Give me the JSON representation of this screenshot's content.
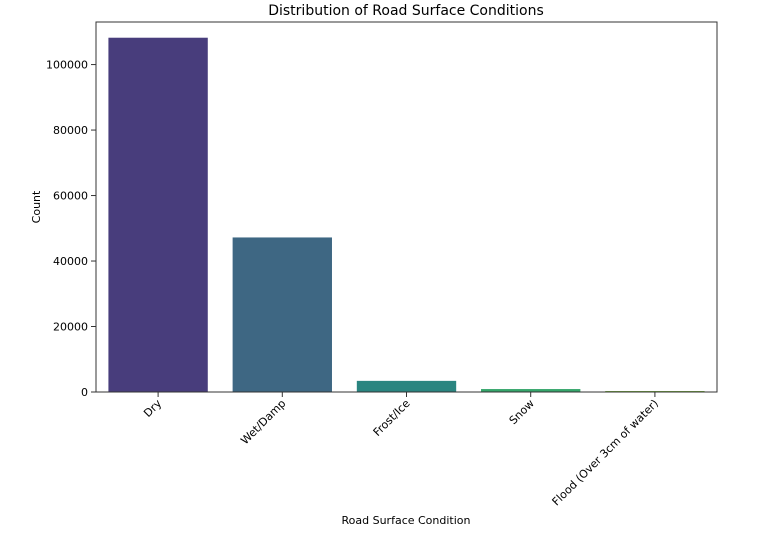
{
  "chart_data": {
    "type": "bar",
    "title": "Distribution of Road Surface Conditions",
    "xlabel": "Road Surface Condition",
    "ylabel": "Count",
    "categories": [
      "Dry",
      "Wet/Damp",
      "Frost/Ice",
      "Snow",
      "Flood (Over 3cm of water)"
    ],
    "values": [
      108200,
      47200,
      3400,
      900,
      300
    ],
    "colors": [
      "#483D7C",
      "#3E6783",
      "#2A8580",
      "#35A66B",
      "#7AB13F"
    ],
    "ylim": [
      0,
      113000
    ],
    "yticks": [
      0,
      20000,
      40000,
      60000,
      80000,
      100000
    ],
    "ytick_labels": [
      "0",
      "20000",
      "40000",
      "60000",
      "80000",
      "100000"
    ],
    "grid": false,
    "legend": "none"
  }
}
